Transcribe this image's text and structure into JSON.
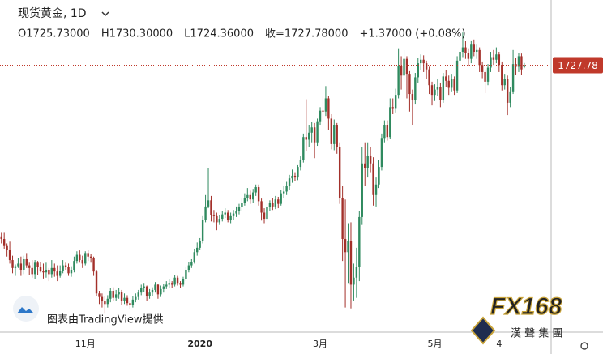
{
  "chart_data": {
    "type": "candlestick",
    "title": "现货黄金, 1D",
    "ohlc_labels": [
      "O1725.73000",
      "H1730.30000",
      "L1724.36000",
      "收=1727.78000",
      "+1.37000 (+0.08%)"
    ],
    "watermark": "图表由TradingView提供",
    "logo_text": "FX168",
    "logo_subtext": "漢 聲 集 團",
    "up_color": "#2f8a5f",
    "down_color": "#a3302a",
    "price_line_color": "#c0392b",
    "ylim": [
      1424,
      1802
    ],
    "categories": [
      null,
      null,
      null,
      null,
      null,
      null,
      null,
      null,
      null,
      null,
      null,
      null,
      null,
      null,
      null,
      null,
      null,
      null,
      null,
      null,
      null,
      null,
      null,
      null,
      null,
      null,
      null,
      null,
      null,
      null,
      "11月",
      null,
      null,
      null,
      null,
      null,
      null,
      null,
      null,
      null,
      null,
      null,
      null,
      null,
      null,
      null,
      null,
      null,
      null,
      null,
      null,
      null,
      null,
      null,
      null,
      null,
      null,
      null,
      null,
      null,
      null,
      null,
      null,
      null,
      null,
      null,
      null,
      null,
      null,
      null,
      null,
      "2020",
      null,
      null,
      null,
      null,
      null,
      null,
      null,
      null,
      null,
      null,
      null,
      null,
      null,
      null,
      null,
      null,
      null,
      null,
      null,
      null,
      null,
      null,
      null,
      null,
      null,
      null,
      null,
      null,
      null,
      null,
      null,
      null,
      null,
      null,
      null,
      null,
      null,
      null,
      null,
      null,
      null,
      null,
      "3月",
      null,
      null,
      null,
      null,
      null,
      null,
      null,
      null,
      null,
      null,
      null,
      null,
      null,
      null,
      null,
      null,
      null,
      null,
      null,
      null,
      null,
      null,
      null,
      null,
      null,
      null,
      null,
      null,
      null,
      null,
      null,
      null,
      null,
      null,
      null,
      null,
      null,
      null,
      null,
      null,
      "5月",
      null,
      null,
      null,
      null,
      null,
      null,
      null,
      null,
      null,
      null,
      null,
      null,
      null,
      null,
      null,
      null,
      null,
      null,
      null,
      null,
      null,
      null,
      "4",
      null,
      null,
      null,
      null,
      null,
      null,
      null,
      null,
      null
    ],
    "open": [
      1533,
      1530,
      1522,
      1518,
      1506,
      1497,
      1499,
      1502,
      1495,
      1507,
      1500,
      1497,
      1490,
      1503,
      1498,
      1494,
      1492,
      1495,
      1490,
      1497,
      1493,
      1488,
      1494,
      1500,
      1498,
      1491,
      1495,
      1505,
      1512,
      1506,
      1502,
      1514,
      1510,
      1508,
      1493,
      1468,
      1464,
      1459,
      1456,
      1462,
      1471,
      1463,
      1467,
      1470,
      1460,
      1463,
      1457,
      1455,
      1461,
      1464,
      1469,
      1474,
      1476,
      1465,
      1469,
      1472,
      1478,
      1467,
      1473,
      1476,
      1478,
      1480,
      1478,
      1486,
      1480,
      1478,
      1484,
      1495,
      1500,
      1504,
      1515,
      1520,
      1528,
      1552,
      1567,
      1574,
      1557,
      1556,
      1549,
      1553,
      1558,
      1560,
      1552,
      1556,
      1559,
      1562,
      1566,
      1571,
      1577,
      1580,
      1575,
      1583,
      1589,
      1573,
      1560,
      1553,
      1566,
      1571,
      1567,
      1575,
      1570,
      1582,
      1584,
      1590,
      1599,
      1602,
      1600,
      1612,
      1620,
      1646,
      1643,
      1651,
      1657,
      1640,
      1664,
      1676,
      1675,
      1690,
      1667,
      1638,
      1660,
      1635,
      1577,
      1530,
      1515,
      1528,
      1478,
      1486,
      1498,
      1555,
      1616,
      1611,
      1625,
      1616,
      1580,
      1592,
      1612,
      1645,
      1660,
      1646,
      1680,
      1679,
      1694,
      1727,
      1716,
      1735,
      1718,
      1695,
      1688,
      1714,
      1730,
      1734,
      1730,
      1723,
      1705,
      1694,
      1700,
      1703,
      1688,
      1715,
      1710,
      1702,
      1712,
      1699,
      1733,
      1743,
      1748,
      1742,
      1735,
      1752,
      1743,
      1745,
      1728,
      1720,
      1709,
      1725,
      1737,
      1734,
      1740,
      1728,
      1705,
      1712,
      1685,
      1698,
      1729,
      1726,
      1738,
      1725.73
    ],
    "high": [
      1537,
      1537,
      1525,
      1527,
      1511,
      1501,
      1508,
      1510,
      1511,
      1514,
      1503,
      1506,
      1506,
      1505,
      1504,
      1502,
      1503,
      1497,
      1506,
      1502,
      1500,
      1500,
      1506,
      1503,
      1502,
      1499,
      1510,
      1516,
      1517,
      1511,
      1516,
      1518,
      1513,
      1510,
      1495,
      1471,
      1468,
      1465,
      1466,
      1474,
      1475,
      1472,
      1474,
      1472,
      1468,
      1466,
      1460,
      1465,
      1468,
      1472,
      1478,
      1480,
      1477,
      1473,
      1475,
      1481,
      1479,
      1477,
      1479,
      1482,
      1484,
      1482,
      1489,
      1488,
      1482,
      1487,
      1498,
      1504,
      1507,
      1519,
      1526,
      1531,
      1556,
      1580,
      1611,
      1579,
      1563,
      1560,
      1557,
      1562,
      1565,
      1563,
      1560,
      1563,
      1567,
      1570,
      1576,
      1582,
      1588,
      1585,
      1587,
      1592,
      1592,
      1576,
      1565,
      1570,
      1574,
      1577,
      1579,
      1578,
      1586,
      1590,
      1595,
      1603,
      1609,
      1606,
      1614,
      1624,
      1650,
      1689,
      1660,
      1663,
      1662,
      1667,
      1680,
      1692,
      1704,
      1693,
      1672,
      1666,
      1662,
      1640,
      1590,
      1575,
      1548,
      1549,
      1502,
      1520,
      1562,
      1635,
      1640,
      1640,
      1635,
      1623,
      1600,
      1620,
      1650,
      1665,
      1665,
      1690,
      1690,
      1701,
      1747,
      1738,
      1745,
      1738,
      1721,
      1700,
      1719,
      1736,
      1740,
      1739,
      1733,
      1726,
      1709,
      1706,
      1712,
      1708,
      1719,
      1722,
      1716,
      1718,
      1715,
      1738,
      1748,
      1765,
      1755,
      1747,
      1756,
      1757,
      1752,
      1748,
      1732,
      1723,
      1729,
      1743,
      1745,
      1748,
      1743,
      1732,
      1718,
      1716,
      1703,
      1745,
      1736,
      1742,
      1741,
      1730.3
    ],
    "low": [
      1525,
      1519,
      1510,
      1502,
      1491,
      1488,
      1497,
      1488,
      1490,
      1497,
      1489,
      1486,
      1484,
      1489,
      1492,
      1485,
      1486,
      1482,
      1486,
      1487,
      1482,
      1486,
      1491,
      1495,
      1488,
      1487,
      1492,
      1502,
      1503,
      1497,
      1500,
      1505,
      1503,
      1488,
      1465,
      1456,
      1452,
      1445,
      1452,
      1458,
      1460,
      1460,
      1462,
      1455,
      1456,
      1454,
      1450,
      1452,
      1458,
      1461,
      1466,
      1470,
      1460,
      1462,
      1465,
      1469,
      1462,
      1464,
      1469,
      1473,
      1474,
      1474,
      1476,
      1477,
      1474,
      1476,
      1482,
      1492,
      1497,
      1502,
      1511,
      1518,
      1525,
      1549,
      1565,
      1550,
      1549,
      1540,
      1546,
      1550,
      1554,
      1549,
      1548,
      1552,
      1555,
      1558,
      1562,
      1568,
      1573,
      1570,
      1571,
      1579,
      1568,
      1551,
      1548,
      1550,
      1562,
      1563,
      1564,
      1565,
      1568,
      1577,
      1580,
      1586,
      1594,
      1596,
      1597,
      1608,
      1617,
      1630,
      1635,
      1640,
      1622,
      1636,
      1660,
      1663,
      1670,
      1654,
      1632,
      1631,
      1627,
      1570,
      1505,
      1452,
      1480,
      1451,
      1460,
      1463,
      1482,
      1546,
      1590,
      1600,
      1606,
      1568,
      1567,
      1588,
      1608,
      1640,
      1642,
      1644,
      1672,
      1674,
      1690,
      1700,
      1709,
      1690,
      1675,
      1660,
      1683,
      1708,
      1722,
      1720,
      1712,
      1695,
      1682,
      1687,
      1693,
      1680,
      1685,
      1703,
      1694,
      1698,
      1694,
      1696,
      1728,
      1737,
      1735,
      1727,
      1730,
      1738,
      1735,
      1720,
      1713,
      1696,
      1705,
      1720,
      1728,
      1730,
      1720,
      1699,
      1700,
      1671,
      1680,
      1695,
      1717,
      1720,
      1717,
      1724.36
    ],
    "close": [
      1530,
      1522,
      1518,
      1506,
      1497,
      1499,
      1502,
      1495,
      1507,
      1500,
      1497,
      1490,
      1503,
      1498,
      1494,
      1492,
      1495,
      1490,
      1497,
      1493,
      1488,
      1494,
      1500,
      1498,
      1491,
      1495,
      1505,
      1512,
      1506,
      1502,
      1514,
      1510,
      1508,
      1493,
      1468,
      1464,
      1459,
      1456,
      1462,
      1471,
      1463,
      1467,
      1470,
      1460,
      1463,
      1457,
      1455,
      1461,
      1464,
      1469,
      1474,
      1476,
      1465,
      1469,
      1472,
      1478,
      1467,
      1473,
      1476,
      1478,
      1480,
      1478,
      1486,
      1480,
      1478,
      1484,
      1495,
      1500,
      1504,
      1515,
      1520,
      1528,
      1552,
      1567,
      1574,
      1557,
      1556,
      1549,
      1553,
      1558,
      1560,
      1552,
      1556,
      1559,
      1562,
      1566,
      1571,
      1577,
      1580,
      1575,
      1583,
      1589,
      1573,
      1560,
      1553,
      1566,
      1571,
      1567,
      1575,
      1570,
      1582,
      1584,
      1590,
      1599,
      1602,
      1600,
      1612,
      1620,
      1646,
      1643,
      1651,
      1657,
      1640,
      1664,
      1676,
      1675,
      1690,
      1667,
      1638,
      1660,
      1635,
      1577,
      1530,
      1515,
      1528,
      1478,
      1486,
      1498,
      1555,
      1616,
      1611,
      1625,
      1616,
      1580,
      1592,
      1612,
      1645,
      1660,
      1646,
      1680,
      1679,
      1694,
      1727,
      1716,
      1735,
      1718,
      1695,
      1688,
      1714,
      1730,
      1734,
      1730,
      1723,
      1705,
      1694,
      1700,
      1703,
      1688,
      1715,
      1710,
      1702,
      1712,
      1699,
      1733,
      1743,
      1748,
      1742,
      1735,
      1752,
      1743,
      1745,
      1728,
      1720,
      1709,
      1725,
      1737,
      1734,
      1740,
      1728,
      1705,
      1712,
      1685,
      1698,
      1729,
      1726,
      1738,
      1723,
      1727.78
    ]
  }
}
